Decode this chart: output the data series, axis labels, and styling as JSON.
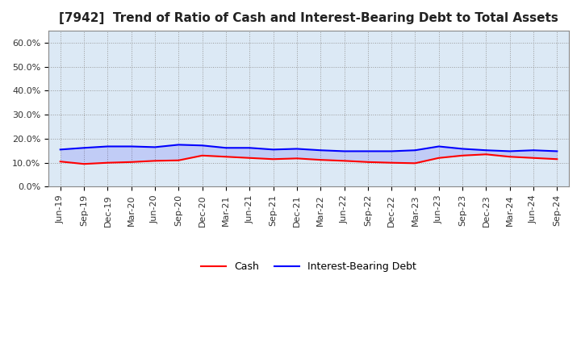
{
  "title": "[7942]  Trend of Ratio of Cash and Interest-Bearing Debt to Total Assets",
  "xlabel": "",
  "ylabel": "",
  "ylim": [
    0.0,
    0.65
  ],
  "yticks": [
    0.0,
    0.1,
    0.2,
    0.3,
    0.4,
    0.5,
    0.6
  ],
  "yticklabels": [
    "0.0%",
    "10.0%",
    "20.0%",
    "30.0%",
    "40.0%",
    "50.0%",
    "60.0%"
  ],
  "x_labels": [
    "Jun-19",
    "Sep-19",
    "Dec-19",
    "Mar-20",
    "Jun-20",
    "Sep-20",
    "Dec-20",
    "Mar-21",
    "Jun-21",
    "Sep-21",
    "Dec-21",
    "Mar-22",
    "Jun-22",
    "Sep-22",
    "Dec-22",
    "Mar-23",
    "Jun-23",
    "Sep-23",
    "Dec-23",
    "Mar-24",
    "Jun-24",
    "Sep-24"
  ],
  "cash": [
    0.105,
    0.095,
    0.1,
    0.103,
    0.108,
    0.11,
    0.13,
    0.125,
    0.12,
    0.115,
    0.118,
    0.112,
    0.108,
    0.103,
    0.1,
    0.098,
    0.12,
    0.13,
    0.135,
    0.125,
    0.12,
    0.115
  ],
  "interest_bearing_debt": [
    0.155,
    0.162,
    0.168,
    0.168,
    0.165,
    0.175,
    0.172,
    0.162,
    0.162,
    0.155,
    0.158,
    0.152,
    0.148,
    0.148,
    0.148,
    0.152,
    0.168,
    0.158,
    0.152,
    0.148,
    0.152,
    0.148
  ],
  "cash_color": "#ff0000",
  "debt_color": "#0000ff",
  "cash_label": "Cash",
  "debt_label": "Interest-Bearing Debt",
  "plot_bg_color": "#dce9f5",
  "fig_bg_color": "#ffffff",
  "grid_color": "#999999",
  "title_fontsize": 11,
  "tick_fontsize": 8,
  "legend_fontsize": 9
}
